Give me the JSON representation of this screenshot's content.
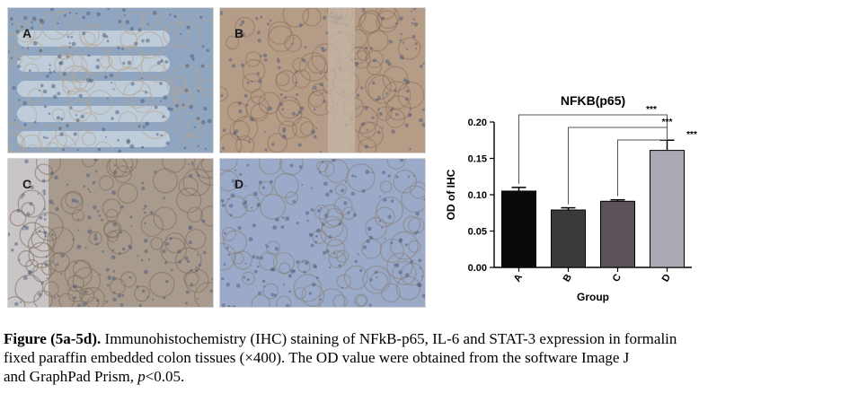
{
  "panels": [
    {
      "label": "A",
      "tone": "#8fa5c0",
      "stain": "#b7a58f"
    },
    {
      "label": "B",
      "tone": "#b59c86",
      "stain": "#8c735f"
    },
    {
      "label": "C",
      "tone": "#a89a8c",
      "stain": "#7d6d60"
    },
    {
      "label": "D",
      "tone": "#9aaac8",
      "stain": "#8a7f7a"
    }
  ],
  "chart_data": {
    "type": "bar",
    "title": "NFKB(p65)",
    "xlabel": "Group",
    "ylabel": "OD of IHC",
    "categories": [
      "A",
      "B",
      "C",
      "D"
    ],
    "values": [
      0.105,
      0.079,
      0.091,
      0.161
    ],
    "errors": [
      0.005,
      0.003,
      0.002,
      0.014
    ],
    "bar_colors": [
      "#0a0a0a",
      "#3a3a3a",
      "#5a5159",
      "#a9a9b4"
    ],
    "ylim": [
      0,
      0.2
    ],
    "yticks": [
      "0.00",
      "0.05",
      "0.10",
      "0.15",
      "0.20"
    ],
    "significance": [
      {
        "from": "A",
        "to": "D",
        "label": "***"
      },
      {
        "from": "B",
        "to": "D",
        "label": "***"
      },
      {
        "from": "C",
        "to": "D",
        "label": "***"
      }
    ]
  },
  "caption": {
    "bold": "Figure (5a-5d).",
    "line1": " Immunohistochemistry (IHC) staining of NFkB-p65, IL-6 and STAT-3 expression in formalin",
    "line2": "fixed paraffin embedded colon tissues (×400). The OD value were obtained from the software Image J",
    "line3_prefix": "and GraphPad Prism, ",
    "line3_italic": "p",
    "line3_suffix": "<0.05."
  }
}
